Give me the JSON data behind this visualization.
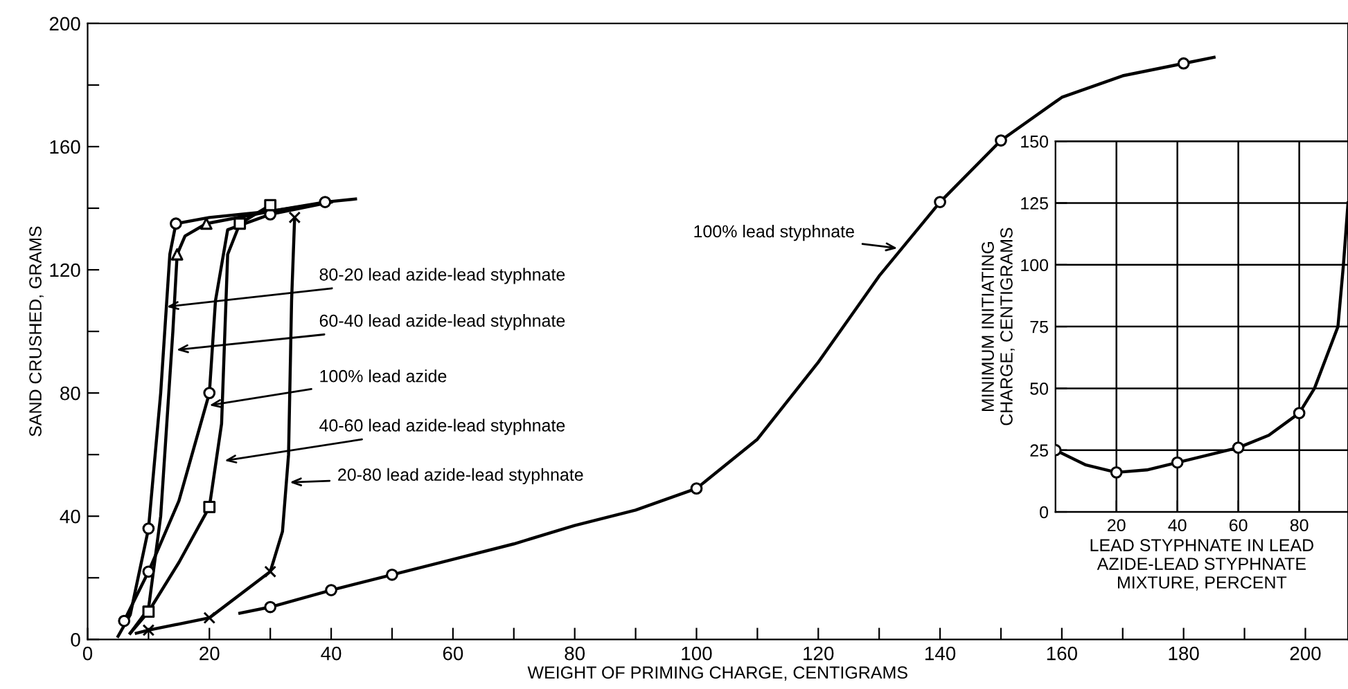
{
  "chart_data": [
    {
      "type": "line",
      "xlabel": "WEIGHT OF PRIMING CHARGE, CENTIGRAMS",
      "ylabel": "SAND CRUSHED, GRAMS",
      "xlim": [
        0,
        207
      ],
      "ylim": [
        0,
        200
      ],
      "xticks": [
        0,
        {
          "value": 10,
          "label": null
        },
        20,
        {
          "value": 30,
          "label": null
        },
        40,
        {
          "value": 50,
          "label": null
        },
        60,
        {
          "value": 70,
          "label": null
        },
        80,
        {
          "value": 90,
          "label": null
        },
        100,
        {
          "value": 110,
          "label": null
        },
        120,
        {
          "value": 130,
          "label": null
        },
        140,
        {
          "value": 150,
          "label": null
        },
        160,
        {
          "value": 170,
          "label": null
        },
        180,
        {
          "value": 190,
          "label": null
        },
        200
      ],
      "yticks": [
        0,
        {
          "value": 20,
          "label": null
        },
        40,
        {
          "value": 60,
          "label": null
        },
        80,
        {
          "value": 100,
          "label": null
        },
        120,
        {
          "value": 140,
          "label": null
        },
        160,
        {
          "value": 180,
          "label": null
        },
        200
      ],
      "grid": false,
      "legend": false,
      "series": [
        {
          "type": "line",
          "marker": "none",
          "color": "#000000",
          "x": [
            5,
            7,
            10,
            12,
            13.5,
            14.5,
            20,
            30,
            39,
            44
          ],
          "values": [
            1,
            8,
            36,
            80,
            125,
            135,
            137,
            139,
            142,
            143
          ]
        },
        {
          "type": "scatter",
          "marker": "circle",
          "color": "#000000",
          "x": [
            10,
            14.5,
            39
          ],
          "values": [
            36,
            135,
            142
          ]
        },
        {
          "type": "line",
          "marker": "none",
          "color": "#000000",
          "x": [
            7,
            10,
            12,
            14,
            14.7,
            16,
            19.5,
            30,
            40
          ],
          "values": [
            2,
            10,
            40,
            100,
            125,
            131,
            135,
            139,
            142
          ]
        },
        {
          "type": "scatter",
          "marker": "triangle",
          "color": "#000000",
          "x": [
            14.7,
            19.5
          ],
          "values": [
            125,
            135
          ]
        },
        {
          "type": "line",
          "marker": "none",
          "color": "#000000",
          "x": [
            6,
            10,
            15,
            20,
            21,
            23,
            30,
            40
          ],
          "values": [
            6,
            22,
            45,
            80,
            110,
            133,
            138,
            142
          ]
        },
        {
          "type": "scatter",
          "marker": "circle",
          "color": "#000000",
          "x": [
            6,
            10,
            20,
            30
          ],
          "values": [
            6,
            22,
            80,
            138
          ]
        },
        {
          "type": "line",
          "marker": "none",
          "color": "#000000",
          "x": [
            7,
            10,
            15,
            20,
            22,
            23,
            25,
            30
          ],
          "values": [
            2,
            9,
            25,
            43,
            70,
            125,
            135,
            141
          ]
        },
        {
          "type": "scatter",
          "marker": "square",
          "color": "#000000",
          "x": [
            10,
            20,
            25,
            30
          ],
          "values": [
            9,
            43,
            135,
            141
          ]
        },
        {
          "type": "line",
          "marker": "none",
          "color": "#000000",
          "x": [
            8,
            10,
            20,
            30,
            32,
            33,
            33.5,
            34
          ],
          "values": [
            2,
            3,
            7,
            22,
            35,
            60,
            110,
            137
          ]
        },
        {
          "type": "scatter",
          "marker": "cross",
          "color": "#000000",
          "x": [
            10,
            20,
            30,
            34
          ],
          "values": [
            3,
            7,
            22,
            137
          ]
        },
        {
          "type": "line",
          "marker": "none",
          "color": "#000000",
          "x": [
            25,
            30,
            40,
            50,
            60,
            70,
            80,
            90,
            100,
            110,
            120,
            130,
            140,
            150,
            160,
            170,
            180,
            185
          ],
          "values": [
            8.5,
            10.5,
            16,
            21,
            26,
            31,
            37,
            42,
            49,
            65,
            90,
            118,
            142,
            162,
            176,
            183,
            187,
            189
          ]
        },
        {
          "type": "scatter",
          "marker": "circle",
          "color": "#000000",
          "x": [
            30,
            40,
            50,
            100,
            140,
            150,
            180
          ],
          "values": [
            10.5,
            16,
            21,
            49,
            142,
            162,
            187
          ]
        }
      ],
      "annotations": [
        {
          "text": "80-20 lead azide-lead styphnate",
          "x": 13,
          "y": 108
        },
        {
          "text": "60-40 lead azide-lead styphnate",
          "x": 14.6,
          "y": 94
        },
        {
          "text": "100% lead azide",
          "x": 20,
          "y": 76
        },
        {
          "text": "40-60 lead azide-lead styphnate",
          "x": 22.5,
          "y": 58
        },
        {
          "text": "20-80 lead azide-lead styphnate",
          "x": 33.2,
          "y": 51
        },
        {
          "text": "100% lead styphnate",
          "x": 133,
          "y": 127
        }
      ]
    },
    {
      "type": "line",
      "xlabel": "LEAD STYPHNATE IN LEAD\nAZIDE-LEAD STYPHNATE\nMIXTURE, PERCENT",
      "ylabel": "MINIMUM INITIATING\nCHARGE, CENTIGRAMS",
      "xlim": [
        0,
        96
      ],
      "ylim": [
        0,
        150
      ],
      "xticks": [
        20,
        40,
        60,
        80
      ],
      "yticks": [
        0,
        25,
        50,
        75,
        100,
        125,
        150
      ],
      "grid": true,
      "legend": false,
      "series": [
        {
          "type": "line",
          "marker": "none",
          "color": "#000000",
          "x": [
            0,
            10,
            20,
            30,
            40,
            50,
            60,
            70,
            80,
            85,
            92.7,
            94.5,
            96
          ],
          "values": [
            25,
            19,
            16,
            17,
            20,
            23,
            26,
            31,
            40,
            50,
            75,
            100,
            125
          ]
        },
        {
          "type": "scatter",
          "marker": "circle",
          "color": "#000000",
          "x": [
            0,
            20,
            40,
            60,
            80
          ],
          "values": [
            25,
            16,
            20,
            26,
            40
          ]
        }
      ]
    }
  ]
}
